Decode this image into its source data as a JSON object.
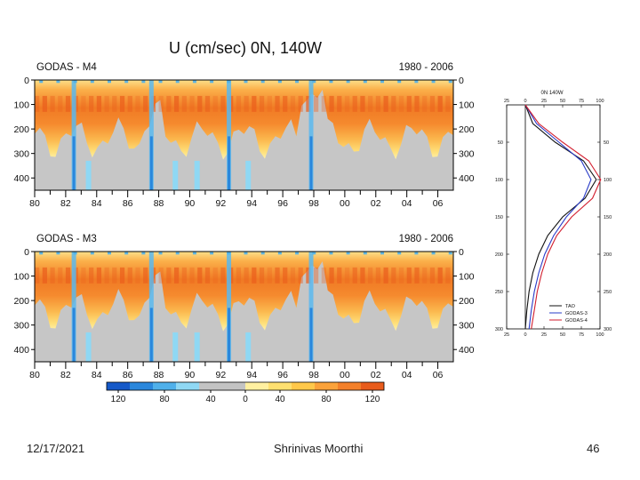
{
  "slide": {
    "title": "U (cm/sec)  0N, 140W",
    "footer_date": "12/17/2021",
    "footer_author": "Shrinivas Moorthi",
    "page_number": "46"
  },
  "chart_data": [
    {
      "type": "heatmap",
      "label": "GODAS - M4",
      "period": "1980 - 2006",
      "x_ticks": [
        "80",
        "82",
        "84",
        "86",
        "88",
        "90",
        "92",
        "94",
        "96",
        "98",
        "00",
        "02",
        "04",
        "06"
      ],
      "y_ticks": [
        "0",
        "100",
        "200",
        "300",
        "400"
      ],
      "xlim": [
        1980,
        2007
      ],
      "ylim": [
        0,
        450
      ],
      "xlabel": "",
      "ylabel": "",
      "core_depth_m": 100,
      "core_speed_cm_s": 80,
      "reversal_years": [
        1982.5,
        1987.5,
        1992.5,
        1997.8
      ]
    },
    {
      "type": "heatmap",
      "label": "GODAS - M3",
      "period": "1980 - 2006",
      "x_ticks": [
        "80",
        "82",
        "84",
        "86",
        "88",
        "90",
        "92",
        "94",
        "96",
        "98",
        "00",
        "02",
        "04",
        "06"
      ],
      "y_ticks": [
        "0",
        "100",
        "200",
        "300",
        "400"
      ],
      "xlim": [
        1980,
        2007
      ],
      "ylim": [
        0,
        450
      ],
      "xlabel": "",
      "ylabel": "",
      "core_depth_m": 100,
      "core_speed_cm_s": 80,
      "reversal_years": [
        1982.5,
        1987.5,
        1992.5,
        1997.8
      ]
    },
    {
      "type": "line",
      "title": "0N 140W",
      "xlim": [
        -25,
        100
      ],
      "ylim": [
        0,
        300
      ],
      "x_ticks": [
        "-25",
        "0",
        "25",
        "50",
        "75",
        "100"
      ],
      "y_ticks": [
        "50",
        "100",
        "150",
        "200",
        "250",
        "300"
      ],
      "series": [
        {
          "name": "TAO",
          "color": "#111111",
          "depth": [
            0,
            25,
            50,
            75,
            100,
            125,
            150,
            175,
            200,
            225,
            250,
            275,
            300
          ],
          "u": [
            0,
            10,
            40,
            78,
            95,
            80,
            50,
            30,
            18,
            10,
            5,
            2,
            0
          ]
        },
        {
          "name": "GODAS-3",
          "color": "#2a3cc8",
          "depth": [
            0,
            25,
            50,
            75,
            100,
            125,
            150,
            175,
            200,
            225,
            250,
            275,
            300
          ],
          "u": [
            0,
            15,
            45,
            75,
            88,
            78,
            55,
            38,
            26,
            18,
            12,
            8,
            5
          ]
        },
        {
          "name": "GODAS-4",
          "color": "#d21e2e",
          "depth": [
            0,
            25,
            50,
            75,
            100,
            125,
            150,
            175,
            200,
            225,
            250,
            275,
            300
          ],
          "u": [
            0,
            18,
            50,
            85,
            101,
            90,
            62,
            42,
            30,
            22,
            16,
            12,
            8
          ]
        }
      ]
    }
  ],
  "colorbar": {
    "labels": [
      "120",
      "80",
      "40",
      "0",
      "40",
      "80",
      "120"
    ],
    "colors": [
      "#1559c8",
      "#2a87dc",
      "#4fb0ea",
      "#8fd8f4",
      "#c3c3c3",
      "#c3c3c3",
      "#fff0a0",
      "#ffe070",
      "#ffc84a",
      "#fba23a",
      "#f3802a",
      "#e85c1c"
    ]
  }
}
